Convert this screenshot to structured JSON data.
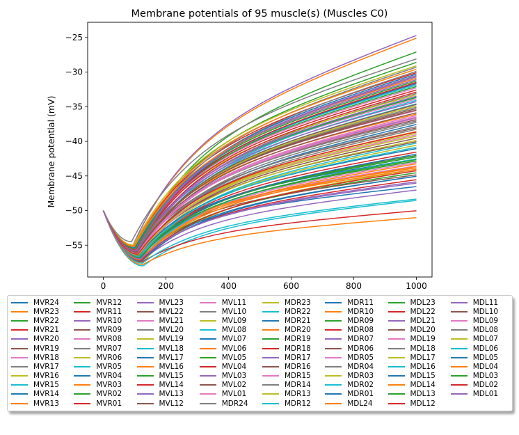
{
  "chart_data": {
    "type": "line",
    "title": "Membrane potentials of 95 muscle(s) (Muscles C0)",
    "xlabel": "",
    "ylabel": "Membrane potential (mV)",
    "xlim": [
      -50,
      1050
    ],
    "ylim": [
      -59.6,
      -22.8
    ],
    "xticks": [
      0,
      200,
      400,
      600,
      800,
      1000
    ],
    "yticks": [
      -55,
      -50,
      -45,
      -40,
      -35,
      -30,
      -25
    ],
    "grid": false,
    "legend_position": "bottom",
    "legend_columns": 8,
    "x": [
      0,
      1000
    ],
    "series": [
      {
        "name": "MVR24",
        "start": -50,
        "min": -56.0,
        "t_min": 110,
        "end": -46.5
      },
      {
        "name": "MVR23",
        "start": -50,
        "min": -55.0,
        "t_min": 95,
        "end": -25.0
      },
      {
        "name": "MVR22",
        "start": -50,
        "min": -55.5,
        "t_min": 105,
        "end": -27.0
      },
      {
        "name": "MVR21",
        "start": -50,
        "min": -56.5,
        "t_min": 115,
        "end": -42.0
      },
      {
        "name": "MVR20",
        "start": -50,
        "min": -55.0,
        "t_min": 95,
        "end": -24.6
      },
      {
        "name": "MVR19",
        "start": -50,
        "min": -56.0,
        "t_min": 110,
        "end": -38.0
      },
      {
        "name": "MVR18",
        "start": -50,
        "min": -55.8,
        "t_min": 108,
        "end": -35.5
      },
      {
        "name": "MVR17",
        "start": -50,
        "min": -56.2,
        "t_min": 112,
        "end": -33.0
      },
      {
        "name": "MVR16",
        "start": -50,
        "min": -57.5,
        "t_min": 125,
        "end": -44.0
      },
      {
        "name": "MVR15",
        "start": -50,
        "min": -58.0,
        "t_min": 128,
        "end": -48.5
      },
      {
        "name": "MVR14",
        "start": -50,
        "min": -57.0,
        "t_min": 120,
        "end": -45.0
      },
      {
        "name": "MVR13",
        "start": -50,
        "min": -57.8,
        "t_min": 126,
        "end": -51.0
      },
      {
        "name": "MVR12",
        "start": -50,
        "min": -55.5,
        "t_min": 100,
        "end": -28.5
      },
      {
        "name": "MVR11",
        "start": -50,
        "min": -55.2,
        "t_min": 98,
        "end": -30.0
      },
      {
        "name": "MVR10",
        "start": -50,
        "min": -56.0,
        "t_min": 108,
        "end": -31.5
      },
      {
        "name": "MVR09",
        "start": -50,
        "min": -56.5,
        "t_min": 112,
        "end": -39.5
      },
      {
        "name": "MVR08",
        "start": -50,
        "min": -56.8,
        "t_min": 115,
        "end": -43.0
      },
      {
        "name": "MVR07",
        "start": -50,
        "min": -55.6,
        "t_min": 104,
        "end": -29.2
      },
      {
        "name": "MVR06",
        "start": -50,
        "min": -55.4,
        "t_min": 102,
        "end": -33.2
      },
      {
        "name": "MVR05",
        "start": -50,
        "min": -56.3,
        "t_min": 113,
        "end": -34.5
      },
      {
        "name": "MVR04",
        "start": -50,
        "min": -56.0,
        "t_min": 110,
        "end": -42.5
      },
      {
        "name": "MVR03",
        "start": -50,
        "min": -55.8,
        "t_min": 106,
        "end": -36.0
      },
      {
        "name": "MVR02",
        "start": -50,
        "min": -56.6,
        "t_min": 116,
        "end": -42.8
      },
      {
        "name": "MVR01",
        "start": -50,
        "min": -57.4,
        "t_min": 124,
        "end": -50.0
      },
      {
        "name": "MVL23",
        "start": -50,
        "min": -55.3,
        "t_min": 100,
        "end": -31.0
      },
      {
        "name": "MVL22",
        "start": -50,
        "min": -56.0,
        "t_min": 110,
        "end": -36.8
      },
      {
        "name": "MVL21",
        "start": -50,
        "min": -55.8,
        "t_min": 107,
        "end": -33.8
      },
      {
        "name": "MVL20",
        "start": -50,
        "min": -56.1,
        "t_min": 111,
        "end": -35.0
      },
      {
        "name": "MVL19",
        "start": -50,
        "min": -55.9,
        "t_min": 108,
        "end": -30.5
      },
      {
        "name": "MVL18",
        "start": -50,
        "min": -56.4,
        "t_min": 114,
        "end": -34.0
      },
      {
        "name": "MVL17",
        "start": -50,
        "min": -56.7,
        "t_min": 117,
        "end": -37.5
      },
      {
        "name": "MVL16",
        "start": -50,
        "min": -56.2,
        "t_min": 112,
        "end": -44.0
      },
      {
        "name": "MVL15",
        "start": -50,
        "min": -56.9,
        "t_min": 118,
        "end": -44.5
      },
      {
        "name": "MVL14",
        "start": -50,
        "min": -56.5,
        "t_min": 114,
        "end": -41.5
      },
      {
        "name": "MVL13",
        "start": -50,
        "min": -57.2,
        "t_min": 122,
        "end": -47.0
      },
      {
        "name": "MVL12",
        "start": -50,
        "min": -56.0,
        "t_min": 110,
        "end": -44.8
      },
      {
        "name": "MVL11",
        "start": -50,
        "min": -55.6,
        "t_min": 103,
        "end": -32.2
      },
      {
        "name": "MVL10",
        "start": -50,
        "min": -55.9,
        "t_min": 107,
        "end": -29.8
      },
      {
        "name": "MVL09",
        "start": -50,
        "min": -56.2,
        "t_min": 111,
        "end": -34.8
      },
      {
        "name": "MVL08",
        "start": -50,
        "min": -56.4,
        "t_min": 113,
        "end": -33.5
      },
      {
        "name": "MVL07",
        "start": -50,
        "min": -56.0,
        "t_min": 109,
        "end": -36.5
      },
      {
        "name": "MVL06",
        "start": -50,
        "min": -56.6,
        "t_min": 116,
        "end": -38.5
      },
      {
        "name": "MVL05",
        "start": -50,
        "min": -56.8,
        "t_min": 118,
        "end": -42.0
      },
      {
        "name": "MVL04",
        "start": -50,
        "min": -57.1,
        "t_min": 121,
        "end": -45.5
      },
      {
        "name": "MVL03",
        "start": -50,
        "min": -56.9,
        "t_min": 119,
        "end": -46.0
      },
      {
        "name": "MVL02",
        "start": -50,
        "min": -56.3,
        "t_min": 113,
        "end": -40.0
      },
      {
        "name": "MVL01",
        "start": -50,
        "min": -56.7,
        "t_min": 117,
        "end": -43.5
      },
      {
        "name": "MDR24",
        "start": -50,
        "min": -54.5,
        "t_min": 90,
        "end": -28.0
      },
      {
        "name": "MDR23",
        "start": -50,
        "min": -55.0,
        "t_min": 96,
        "end": -29.0
      },
      {
        "name": "MDR22",
        "start": -50,
        "min": -55.3,
        "t_min": 100,
        "end": -31.8
      },
      {
        "name": "MDR21",
        "start": -50,
        "min": -55.6,
        "t_min": 104,
        "end": -30.2
      },
      {
        "name": "MDR20",
        "start": -50,
        "min": -55.1,
        "t_min": 98,
        "end": -29.5
      },
      {
        "name": "MDR19",
        "start": -50,
        "min": -55.4,
        "t_min": 101,
        "end": -31.2
      },
      {
        "name": "MDR18",
        "start": -50,
        "min": -55.7,
        "t_min": 105,
        "end": -32.5
      },
      {
        "name": "MDR17",
        "start": -50,
        "min": -55.9,
        "t_min": 107,
        "end": -34.2
      },
      {
        "name": "MDR16",
        "start": -50,
        "min": -56.1,
        "t_min": 110,
        "end": -35.2
      },
      {
        "name": "MDR15",
        "start": -50,
        "min": -56.3,
        "t_min": 112,
        "end": -36.2
      },
      {
        "name": "MDR14",
        "start": -50,
        "min": -56.0,
        "t_min": 109,
        "end": -37.0
      },
      {
        "name": "MDR13",
        "start": -50,
        "min": -56.5,
        "t_min": 114,
        "end": -38.8
      },
      {
        "name": "MDR12",
        "start": -50,
        "min": -57.6,
        "t_min": 125,
        "end": -48.3
      },
      {
        "name": "MDR11",
        "start": -50,
        "min": -55.4,
        "t_min": 102,
        "end": -31.6
      },
      {
        "name": "MDR10",
        "start": -50,
        "min": -55.2,
        "t_min": 99,
        "end": -30.8
      },
      {
        "name": "MDR09",
        "start": -50,
        "min": -55.8,
        "t_min": 106,
        "end": -33.6
      },
      {
        "name": "MDR08",
        "start": -50,
        "min": -56.0,
        "t_min": 108,
        "end": -32.8
      },
      {
        "name": "MDR07",
        "start": -50,
        "min": -55.6,
        "t_min": 104,
        "end": -30.6
      },
      {
        "name": "MDR06",
        "start": -50,
        "min": -56.2,
        "t_min": 111,
        "end": -35.8
      },
      {
        "name": "MDR05",
        "start": -50,
        "min": -56.6,
        "t_min": 115,
        "end": -39.0
      },
      {
        "name": "MDR04",
        "start": -50,
        "min": -56.4,
        "t_min": 113,
        "end": -37.8
      },
      {
        "name": "MDR03",
        "start": -50,
        "min": -56.8,
        "t_min": 117,
        "end": -40.5
      },
      {
        "name": "MDR02",
        "start": -50,
        "min": -57.0,
        "t_min": 120,
        "end": -42.5
      },
      {
        "name": "MDR01",
        "start": -50,
        "min": -57.3,
        "t_min": 123,
        "end": -45.0
      },
      {
        "name": "MDL24",
        "start": -50,
        "min": -56.0,
        "t_min": 110,
        "end": -43.8
      },
      {
        "name": "MDL23",
        "start": -50,
        "min": -55.5,
        "t_min": 103,
        "end": -32.0
      },
      {
        "name": "MDL22",
        "start": -50,
        "min": -55.7,
        "t_min": 105,
        "end": -31.4
      },
      {
        "name": "MDL21",
        "start": -50,
        "min": -55.9,
        "t_min": 108,
        "end": -33.4
      },
      {
        "name": "MDL20",
        "start": -50,
        "min": -56.1,
        "t_min": 110,
        "end": -34.6
      },
      {
        "name": "MDL19",
        "start": -50,
        "min": -56.3,
        "t_min": 112,
        "end": -36.6
      },
      {
        "name": "MDL18",
        "start": -50,
        "min": -56.5,
        "t_min": 114,
        "end": -37.2
      },
      {
        "name": "MDL17",
        "start": -50,
        "min": -56.7,
        "t_min": 116,
        "end": -39.8
      },
      {
        "name": "MDL16",
        "start": -50,
        "min": -56.9,
        "t_min": 118,
        "end": -40.2
      },
      {
        "name": "MDL15",
        "start": -50,
        "min": -56.4,
        "t_min": 113,
        "end": -41.0
      },
      {
        "name": "MDL14",
        "start": -50,
        "min": -57.0,
        "t_min": 120,
        "end": -43.2
      },
      {
        "name": "MDL13",
        "start": -50,
        "min": -56.6,
        "t_min": 115,
        "end": -42.2
      },
      {
        "name": "MDL12",
        "start": -50,
        "min": -57.2,
        "t_min": 122,
        "end": -44.2
      },
      {
        "name": "MDL11",
        "start": -50,
        "min": -55.8,
        "t_min": 106,
        "end": -30.4
      },
      {
        "name": "MDL10",
        "start": -50,
        "min": -56.0,
        "t_min": 108,
        "end": -35.4
      },
      {
        "name": "MDL09",
        "start": -50,
        "min": -56.2,
        "t_min": 110,
        "end": -36.4
      },
      {
        "name": "MDL08",
        "start": -50,
        "min": -56.5,
        "t_min": 113,
        "end": -38.2
      },
      {
        "name": "MDL07",
        "start": -50,
        "min": -56.4,
        "t_min": 112,
        "end": -39.2
      },
      {
        "name": "MDL06",
        "start": -50,
        "min": -56.7,
        "t_min": 115,
        "end": -40.8
      },
      {
        "name": "MDL05",
        "start": -50,
        "min": -56.9,
        "t_min": 117,
        "end": -41.8
      },
      {
        "name": "MDL04",
        "start": -50,
        "min": -57.1,
        "t_min": 119,
        "end": -43.6
      },
      {
        "name": "MDL03",
        "start": -50,
        "min": -56.8,
        "t_min": 116,
        "end": -42.6
      },
      {
        "name": "MDL02",
        "start": -50,
        "min": -56.3,
        "t_min": 111,
        "end": -38.6
      },
      {
        "name": "MDL01",
        "start": -50,
        "min": -57.0,
        "t_min": 120,
        "end": -45.8
      }
    ],
    "colors": [
      "#1f77b4",
      "#ff7f0e",
      "#2ca02c",
      "#d62728",
      "#9467bd",
      "#8c564b",
      "#e377c2",
      "#7f7f7f",
      "#bcbd22",
      "#17becf"
    ]
  }
}
